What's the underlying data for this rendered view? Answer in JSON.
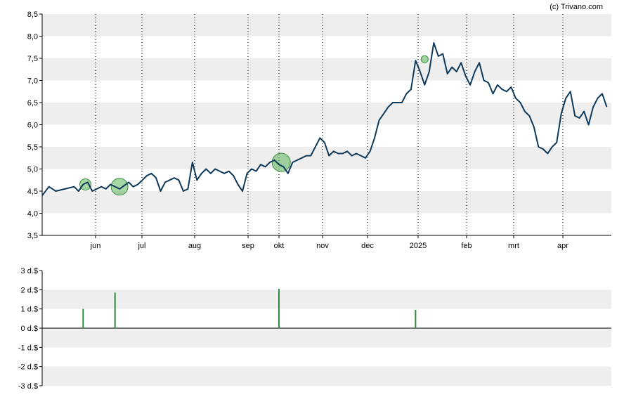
{
  "copyright": "(c) Trivano.com",
  "colors": {
    "line": "#0d3a5c",
    "band": "#eeeeee",
    "marker_fill": "#5cb85c",
    "bar": "#2e8b3d"
  },
  "chart_data": [
    {
      "type": "line",
      "title": "",
      "xlabel": "",
      "ylabel": "",
      "ylim": [
        3.5,
        8.5
      ],
      "yticks": [
        "3,5",
        "4,0",
        "4,5",
        "5,0",
        "5,5",
        "6,0",
        "6,5",
        "7,0",
        "7,5",
        "8,0",
        "8,5"
      ],
      "xticks": [
        "jun",
        "jul",
        "aug",
        "sep",
        "okt",
        "nov",
        "dec",
        "2025",
        "feb",
        "mrt",
        "apr"
      ],
      "grid": true,
      "series": [
        {
          "points": [
            [
              0,
              4.4
            ],
            [
              1.5,
              4.6
            ],
            [
              3,
              4.5
            ],
            [
              5,
              4.55
            ],
            [
              7,
              4.6
            ],
            [
              8,
              4.5
            ],
            [
              9,
              4.65
            ],
            [
              10,
              4.7
            ],
            [
              11,
              4.5
            ],
            [
              12,
              4.55
            ],
            [
              13,
              4.6
            ],
            [
              14,
              4.55
            ],
            [
              15,
              4.65
            ],
            [
              17,
              4.55
            ],
            [
              19,
              4.7
            ],
            [
              20,
              4.6
            ],
            [
              21,
              4.65
            ],
            [
              22,
              4.75
            ],
            [
              23,
              4.85
            ],
            [
              24,
              4.9
            ],
            [
              25,
              4.8
            ],
            [
              26,
              4.5
            ],
            [
              27,
              4.7
            ],
            [
              28,
              4.75
            ],
            [
              29,
              4.8
            ],
            [
              30,
              4.75
            ],
            [
              31,
              4.5
            ],
            [
              32,
              4.55
            ],
            [
              33,
              5.15
            ],
            [
              34,
              4.75
            ],
            [
              35,
              4.9
            ],
            [
              36,
              5.0
            ],
            [
              37,
              4.9
            ],
            [
              38,
              5.0
            ],
            [
              39,
              4.95
            ],
            [
              40,
              4.9
            ],
            [
              41,
              4.95
            ],
            [
              42,
              4.85
            ],
            [
              43,
              4.65
            ],
            [
              44,
              4.5
            ],
            [
              45,
              4.9
            ],
            [
              46,
              5.0
            ],
            [
              47,
              4.95
            ],
            [
              48,
              5.1
            ],
            [
              49,
              5.05
            ],
            [
              50,
              5.15
            ],
            [
              51,
              5.2
            ],
            [
              52,
              5.1
            ],
            [
              53,
              5.05
            ],
            [
              54,
              4.9
            ],
            [
              55,
              5.15
            ],
            [
              56,
              5.2
            ],
            [
              57,
              5.25
            ],
            [
              58,
              5.3
            ],
            [
              59,
              5.3
            ],
            [
              60,
              5.5
            ],
            [
              61,
              5.7
            ],
            [
              62,
              5.6
            ],
            [
              63,
              5.3
            ],
            [
              64,
              5.4
            ],
            [
              65,
              5.35
            ],
            [
              66,
              5.35
            ],
            [
              67,
              5.4
            ],
            [
              68,
              5.3
            ],
            [
              69,
              5.35
            ],
            [
              70,
              5.3
            ],
            [
              71,
              5.25
            ],
            [
              72,
              5.4
            ],
            [
              73,
              5.7
            ],
            [
              74,
              6.1
            ],
            [
              75,
              6.25
            ],
            [
              76,
              6.4
            ],
            [
              77,
              6.5
            ],
            [
              78,
              6.5
            ],
            [
              79,
              6.5
            ],
            [
              80,
              6.7
            ],
            [
              81,
              6.8
            ],
            [
              82,
              7.45
            ],
            [
              83,
              7.2
            ],
            [
              84,
              6.9
            ],
            [
              85,
              7.2
            ],
            [
              86,
              7.85
            ],
            [
              87,
              7.55
            ],
            [
              88,
              7.6
            ],
            [
              89,
              7.15
            ],
            [
              90,
              7.3
            ],
            [
              91,
              7.2
            ],
            [
              92,
              7.4
            ],
            [
              93,
              7.1
            ],
            [
              94,
              6.9
            ],
            [
              95,
              7.2
            ],
            [
              96,
              7.4
            ],
            [
              97,
              7.0
            ],
            [
              98,
              6.95
            ],
            [
              99,
              6.7
            ],
            [
              100,
              6.9
            ],
            [
              101,
              6.8
            ],
            [
              102,
              6.75
            ],
            [
              103,
              6.85
            ],
            [
              104,
              6.6
            ],
            [
              105,
              6.5
            ],
            [
              106,
              6.3
            ],
            [
              107,
              6.2
            ],
            [
              108,
              5.95
            ],
            [
              109,
              5.5
            ],
            [
              110,
              5.45
            ],
            [
              111,
              5.35
            ],
            [
              112,
              5.5
            ],
            [
              113,
              5.6
            ],
            [
              114,
              6.25
            ],
            [
              115,
              6.6
            ],
            [
              116,
              6.75
            ],
            [
              117,
              6.2
            ],
            [
              118,
              6.15
            ],
            [
              119,
              6.3
            ],
            [
              120,
              6.0
            ],
            [
              121,
              6.4
            ],
            [
              122,
              6.6
            ],
            [
              123,
              6.7
            ],
            [
              124,
              6.4
            ]
          ]
        }
      ],
      "markers": [
        {
          "x": 9.5,
          "y": 4.65,
          "r": 8
        },
        {
          "x": 17,
          "y": 4.6,
          "r": 12
        },
        {
          "x": 52.5,
          "y": 5.15,
          "r": 13
        },
        {
          "x": 84,
          "y": 7.48,
          "r": 5
        }
      ]
    },
    {
      "type": "bar",
      "title": "",
      "xlabel": "",
      "ylabel": "",
      "ylim": [
        -3,
        3
      ],
      "yticks": [
        "-3 d.$",
        "-2 d.$",
        "-1 d.$",
        "0 d.$",
        "1 d.$",
        "2 d.$",
        "3 d.$"
      ],
      "grid": true,
      "bars": [
        {
          "x": 9,
          "value": 1.0
        },
        {
          "x": 16,
          "value": 1.85
        },
        {
          "x": 52,
          "value": 2.05
        },
        {
          "x": 82,
          "value": 0.95
        }
      ]
    }
  ]
}
